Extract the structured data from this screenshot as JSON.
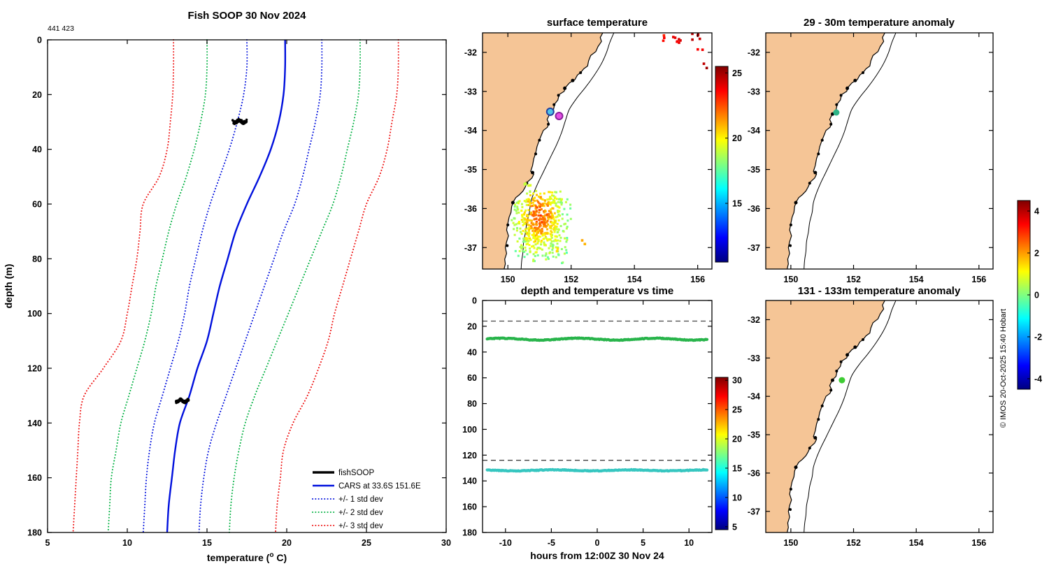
{
  "figure": {
    "copyright": "© IMOS 20-Oct-2025 15:40 Hobart",
    "background": "#ffffff"
  },
  "chart_data": [
    {
      "id": "profile",
      "type": "line",
      "title": "Fish SOOP 30 Nov 2024",
      "annotation": "441 423",
      "xlabel_parts": [
        "temperature (",
        "o",
        " C)"
      ],
      "ylabel": "depth (m)",
      "xlim": [
        5,
        30
      ],
      "ylim": [
        0,
        180
      ],
      "xticks": [
        5,
        10,
        15,
        20,
        25,
        30
      ],
      "yticks": [
        0,
        20,
        40,
        60,
        80,
        100,
        120,
        140,
        160,
        180
      ],
      "depths": [
        0,
        10,
        20,
        30,
        40,
        50,
        60,
        70,
        80,
        90,
        100,
        110,
        120,
        130,
        140,
        150,
        160,
        170,
        180
      ],
      "series": [
        {
          "name": "CARS mean",
          "style": "solid",
          "color": "#0010dd",
          "width": 2.4,
          "temps": [
            19.9,
            19.9,
            19.8,
            19.5,
            19.0,
            18.3,
            17.5,
            16.8,
            16.3,
            15.8,
            15.4,
            15.0,
            14.4,
            13.9,
            13.3,
            13.0,
            12.8,
            12.6,
            12.5
          ]
        },
        {
          "name": "plus 1 std dev",
          "style": "dotted",
          "color": "#0010dd",
          "width": 2,
          "temps": [
            22.2,
            22.2,
            22.1,
            21.8,
            21.4,
            21.0,
            20.5,
            19.8,
            19.2,
            18.6,
            18.0,
            17.4,
            16.8,
            16.2,
            15.6,
            15.1,
            14.8,
            14.6,
            14.5
          ]
        },
        {
          "name": "minus 1 std dev",
          "style": "dotted",
          "color": "#0010dd",
          "width": 2,
          "temps": [
            17.5,
            17.5,
            17.3,
            16.9,
            16.4,
            15.8,
            15.2,
            14.7,
            14.3,
            13.9,
            13.6,
            13.2,
            12.7,
            12.2,
            11.7,
            11.4,
            11.2,
            11.1,
            11.0
          ]
        },
        {
          "name": "plus 2 std dev",
          "style": "dotted",
          "color": "#00b040",
          "width": 2,
          "temps": [
            24.6,
            24.6,
            24.5,
            24.2,
            23.8,
            23.4,
            22.9,
            22.2,
            21.5,
            20.8,
            20.1,
            19.4,
            18.7,
            18.0,
            17.4,
            17.0,
            16.7,
            16.5,
            16.4
          ]
        },
        {
          "name": "minus 2 std dev",
          "style": "dotted",
          "color": "#00b040",
          "width": 2,
          "temps": [
            15.0,
            15.0,
            14.9,
            14.6,
            14.2,
            13.7,
            13.1,
            12.6,
            12.2,
            11.8,
            11.5,
            11.1,
            10.6,
            10.1,
            9.6,
            9.3,
            9.0,
            8.9,
            8.8
          ]
        },
        {
          "name": "plus 3 std dev",
          "style": "dotted",
          "color": "#ee1111",
          "width": 2,
          "temps": [
            27.0,
            27.0,
            26.9,
            26.6,
            26.3,
            25.8,
            25.0,
            24.5,
            24.0,
            23.5,
            23.0,
            22.6,
            22.0,
            21.3,
            20.4,
            19.8,
            19.6,
            19.4,
            19.3
          ]
        },
        {
          "name": "minus 3 std dev",
          "style": "dotted",
          "color": "#ee1111",
          "width": 2,
          "temps": [
            12.9,
            12.9,
            12.85,
            12.7,
            12.5,
            12.0,
            11.0,
            10.8,
            10.6,
            10.3,
            10.0,
            9.6,
            8.5,
            7.3,
            7.0,
            6.9,
            6.8,
            6.7,
            6.6
          ]
        }
      ],
      "observations": [
        {
          "temp": 17.05,
          "temp_spread": 0.45,
          "depth": 29.8,
          "depth_spread": 1.0,
          "count": 95,
          "seed": 7
        },
        {
          "temp": 13.45,
          "temp_spread": 0.4,
          "depth": 131.9,
          "depth_spread": 0.9,
          "count": 85,
          "seed": 13
        }
      ],
      "legend": [
        {
          "label": "fishSOOP",
          "color": "#000000",
          "style": "solid",
          "width": 3.5
        },
        {
          "label": "CARS at 33.6S 151.6E",
          "color": "#0010dd",
          "style": "solid",
          "width": 2.4
        },
        {
          "label": "+/- 1 std dev",
          "color": "#0010dd",
          "style": "dotted",
          "width": 2
        },
        {
          "label": "+/- 2 std dev",
          "color": "#00b040",
          "style": "dotted",
          "width": 2
        },
        {
          "label": "+/- 3 std dev",
          "color": "#ee1111",
          "style": "dotted",
          "width": 2
        }
      ]
    },
    {
      "id": "surface_map",
      "type": "scatter-map",
      "title": "surface temperature",
      "lon_ticks": [
        150,
        152,
        154,
        156
      ],
      "lat_ticks": [
        -32,
        -33,
        -34,
        -35,
        -36,
        -37
      ],
      "colorbar": {
        "range": [
          10.5,
          25.5
        ],
        "ticks": [
          15,
          20,
          25
        ]
      },
      "markers": [
        {
          "name": "profile-location-shallow",
          "lon": 151.34,
          "lat": -33.52,
          "fill": "#4fc3e8",
          "edge": "#223f9f",
          "r": 5
        },
        {
          "name": "profile-location-deep",
          "lon": 151.62,
          "lat": -33.63,
          "fill": "#e54fe5",
          "edge": "#882299",
          "r": 5
        }
      ],
      "sst_patch": {
        "seed": 42,
        "count": 560,
        "lon_center": 151.05,
        "lat_center": -36.35,
        "lon_spread": 0.55,
        "lat_spread": 0.62,
        "temp_peak": 22.3,
        "temp_base": 18.0
      },
      "ne_spots": [
        {
          "lon": 155.35,
          "lat": -31.66,
          "temp": 24.0,
          "n": 7,
          "seed": 3
        },
        {
          "lon": 155.95,
          "lat": -31.62,
          "temp": 24.6,
          "n": 5,
          "seed": 4
        },
        {
          "lon": 154.88,
          "lat": -31.62,
          "temp": 23.4,
          "n": 3,
          "seed": 5
        },
        {
          "lon": 156.28,
          "lat": -32.3,
          "temp": 24.9,
          "n": 2,
          "seed": 6
        },
        {
          "lon": 156.1,
          "lat": -31.95,
          "temp": 23.8,
          "n": 2,
          "seed": 8
        }
      ],
      "coast_specks": [
        {
          "lon": 150.62,
          "lat": -35.45,
          "temp": 19.2,
          "n": 5,
          "seed": 9
        },
        {
          "lon": 152.35,
          "lat": -36.9,
          "temp": 21.0,
          "n": 2,
          "seed": 10
        },
        {
          "lon": 151.55,
          "lat": -37.1,
          "temp": 20.3,
          "n": 2,
          "seed": 11
        }
      ]
    },
    {
      "id": "anomaly_29_30",
      "type": "scatter-map",
      "title": "29 - 30m temperature anomaly",
      "lon_ticks": [
        150,
        152,
        154,
        156
      ],
      "lat_ticks": [
        -32,
        -33,
        -34,
        -35,
        -36,
        -37
      ],
      "dot": {
        "lon": 151.45,
        "lat": -33.54,
        "anomaly": -0.2,
        "color": "#2eb487",
        "r": 4.5
      }
    },
    {
      "id": "depth_temp_time",
      "type": "scatter",
      "title": "depth and temperature vs time",
      "xlabel": "hours from 12:00Z 30 Nov 24",
      "xlim": [
        -12.5,
        12.5
      ],
      "ylim": [
        0,
        180
      ],
      "xticks": [
        -10,
        -5,
        0,
        5,
        10
      ],
      "yticks": [
        0,
        20,
        40,
        60,
        80,
        100,
        120,
        140,
        160,
        180
      ],
      "bands": [
        {
          "depth": 30,
          "temp": 17.0,
          "color": "#28b44b",
          "wiggle": 0.7,
          "t_start": -12,
          "t_end": 12
        },
        {
          "depth": 131.8,
          "temp": 13.5,
          "color": "#36c6c0",
          "wiggle": 0.4,
          "t_start": -12,
          "t_end": 12
        }
      ],
      "dashed_depths": [
        16,
        124
      ],
      "colorbar": {
        "range": [
          4.5,
          30.5
        ],
        "ticks": [
          5,
          10,
          15,
          20,
          25,
          30
        ]
      }
    },
    {
      "id": "anomaly_131_133",
      "type": "scatter-map",
      "title": "131 - 133m temperature anomaly",
      "lon_ticks": [
        150,
        152,
        154,
        156
      ],
      "lat_ticks": [
        -32,
        -33,
        -34,
        -35,
        -36,
        -37
      ],
      "dot": {
        "lon": 151.63,
        "lat": -33.58,
        "anomaly": 0.4,
        "color": "#3ecc33",
        "r": 4.5
      }
    }
  ],
  "anomaly_colorbar": {
    "range": [
      -4.5,
      4.5
    ],
    "ticks": [
      4,
      2,
      0,
      -2,
      -4
    ]
  },
  "map_geometry": {
    "land_color": "#f5c596",
    "coast": [
      [
        153.0,
        -31.5
      ],
      [
        152.92,
        -31.62
      ],
      [
        152.96,
        -31.72
      ],
      [
        152.85,
        -31.85
      ],
      [
        152.78,
        -31.98
      ],
      [
        152.62,
        -32.08
      ],
      [
        152.55,
        -32.22
      ],
      [
        152.52,
        -32.35
      ],
      [
        152.4,
        -32.42
      ],
      [
        152.3,
        -32.52
      ],
      [
        152.2,
        -32.58
      ],
      [
        152.12,
        -32.7
      ],
      [
        151.95,
        -32.78
      ],
      [
        151.82,
        -32.9
      ],
      [
        151.78,
        -33.0
      ],
      [
        151.62,
        -33.08
      ],
      [
        151.58,
        -33.22
      ],
      [
        151.48,
        -33.32
      ],
      [
        151.44,
        -33.48
      ],
      [
        151.35,
        -33.55
      ],
      [
        151.3,
        -33.62
      ],
      [
        151.24,
        -33.72
      ],
      [
        151.3,
        -33.82
      ],
      [
        151.25,
        -33.92
      ],
      [
        151.12,
        -34.0
      ],
      [
        151.06,
        -34.12
      ],
      [
        150.98,
        -34.28
      ],
      [
        150.92,
        -34.42
      ],
      [
        150.88,
        -34.58
      ],
      [
        150.82,
        -34.72
      ],
      [
        150.78,
        -34.9
      ],
      [
        150.72,
        -35.05
      ],
      [
        150.82,
        -35.12
      ],
      [
        150.76,
        -35.22
      ],
      [
        150.62,
        -35.32
      ],
      [
        150.55,
        -35.45
      ],
      [
        150.48,
        -35.55
      ],
      [
        150.36,
        -35.65
      ],
      [
        150.25,
        -35.72
      ],
      [
        150.18,
        -35.82
      ],
      [
        150.12,
        -35.95
      ],
      [
        150.1,
        -36.1
      ],
      [
        150.04,
        -36.22
      ],
      [
        150.0,
        -36.38
      ],
      [
        149.96,
        -36.55
      ],
      [
        150.02,
        -36.7
      ],
      [
        149.96,
        -36.85
      ],
      [
        149.92,
        -37.0
      ],
      [
        149.96,
        -37.15
      ],
      [
        149.9,
        -37.3
      ],
      [
        149.92,
        -37.42
      ],
      [
        149.88,
        -37.55
      ]
    ],
    "shelf": [
      [
        153.35,
        -31.5
      ],
      [
        153.22,
        -31.75
      ],
      [
        153.12,
        -32.0
      ],
      [
        152.95,
        -32.3
      ],
      [
        152.72,
        -32.6
      ],
      [
        152.45,
        -32.9
      ],
      [
        152.2,
        -33.15
      ],
      [
        151.95,
        -33.45
      ],
      [
        151.82,
        -33.75
      ],
      [
        151.7,
        -34.05
      ],
      [
        151.55,
        -34.35
      ],
      [
        151.4,
        -34.6
      ],
      [
        151.25,
        -34.85
      ],
      [
        151.1,
        -35.1
      ],
      [
        150.95,
        -35.35
      ],
      [
        150.82,
        -35.6
      ],
      [
        150.72,
        -35.85
      ],
      [
        150.68,
        -36.1
      ],
      [
        150.6,
        -36.35
      ],
      [
        150.56,
        -36.6
      ],
      [
        150.5,
        -36.85
      ],
      [
        150.48,
        -37.1
      ],
      [
        150.44,
        -37.32
      ],
      [
        150.42,
        -37.55
      ]
    ],
    "coast_marks": [
      {
        "lon": 152.3,
        "lat": -32.52,
        "r": 2
      },
      {
        "lon": 152.05,
        "lat": -32.72,
        "r": 2.5
      },
      {
        "lon": 151.8,
        "lat": -32.92,
        "r": 2.5
      },
      {
        "lon": 151.6,
        "lat": -33.1,
        "r": 2
      },
      {
        "lon": 151.46,
        "lat": -33.34,
        "r": 2
      },
      {
        "lon": 151.33,
        "lat": -33.58,
        "r": 2.5
      },
      {
        "lon": 151.28,
        "lat": -33.84,
        "r": 2
      },
      {
        "lon": 151.0,
        "lat": -34.25,
        "r": 2
      },
      {
        "lon": 150.88,
        "lat": -34.6,
        "r": 2
      },
      {
        "lon": 150.78,
        "lat": -35.08,
        "r": 2.5
      },
      {
        "lon": 150.6,
        "lat": -35.35,
        "r": 2
      },
      {
        "lon": 150.16,
        "lat": -35.85,
        "r": 2.5
      },
      {
        "lon": 150.0,
        "lat": -36.42,
        "r": 2
      },
      {
        "lon": 149.98,
        "lat": -36.95,
        "r": 2
      }
    ]
  }
}
